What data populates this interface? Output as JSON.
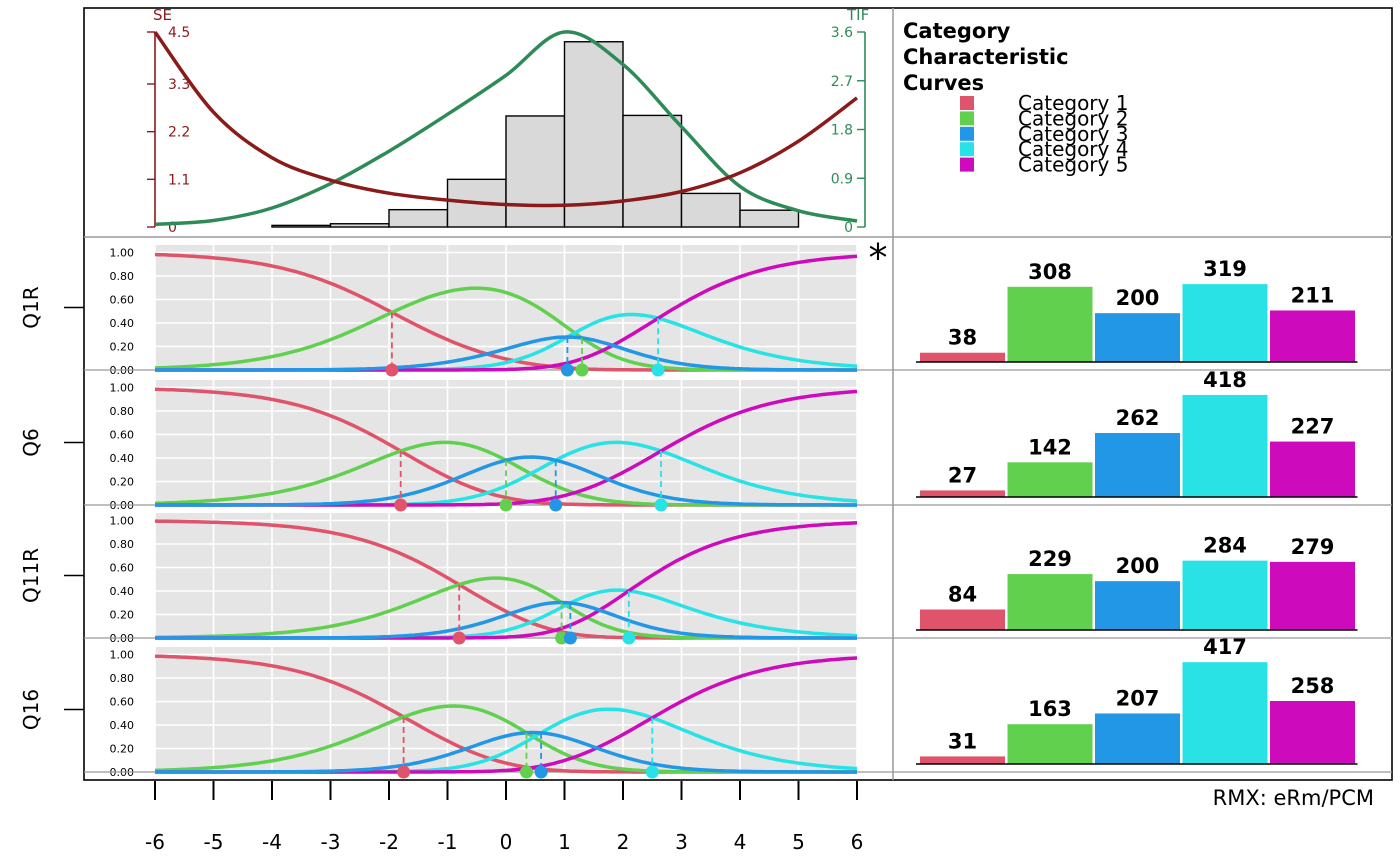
{
  "colors": {
    "cat1": "#DF536B",
    "cat2": "#61D04F",
    "cat3": "#2297E6",
    "cat4": "#28E2E5",
    "cat5": "#CD0BBC",
    "se": "#8B1A1A",
    "tif": "#2E8B57",
    "panel_bg": "#E5E5E5",
    "hist_fill": "#D9D9D9"
  },
  "chart_data": [
    {
      "type": "line",
      "panel": "test information and standard error",
      "left_axis_label": "SE",
      "right_axis_label": "TIF",
      "se_ticks": [
        "0",
        "1.1",
        "2.2",
        "3.3",
        "4.5"
      ],
      "se_range": [
        0,
        4.5
      ],
      "tif_ticks": [
        "0",
        "0.9",
        "1.8",
        "2.7",
        "3.6"
      ],
      "tif_range": [
        0,
        3.6
      ],
      "x_range": [
        -6,
        6
      ],
      "se_curve": {
        "x": [
          -6,
          -5,
          -4,
          -3,
          -2,
          -1,
          0,
          1,
          2,
          3,
          4,
          5,
          6
        ],
        "y": [
          4.5,
          2.65,
          1.6,
          1.08,
          0.78,
          0.62,
          0.52,
          0.5,
          0.6,
          0.82,
          1.25,
          1.98,
          2.98
        ]
      },
      "tif_curve": {
        "x": [
          -6,
          -5,
          -4,
          -3,
          -2,
          -1,
          0,
          1,
          2,
          3,
          4,
          5,
          6
        ],
        "y": [
          0.05,
          0.12,
          0.35,
          0.8,
          1.4,
          2.08,
          2.8,
          3.6,
          3.0,
          1.85,
          0.75,
          0.3,
          0.11
        ]
      },
      "histogram": {
        "bin_edges": [
          -4,
          -3,
          -2,
          -1,
          0,
          1,
          2,
          3,
          4,
          5
        ],
        "heights_tif_units": [
          0.03,
          0.06,
          0.32,
          0.88,
          2.05,
          3.42,
          2.06,
          0.62,
          0.31
        ]
      }
    },
    {
      "type": "line",
      "panel": "category characteristic curves",
      "legend_title": "Category Characteristic Curves",
      "legend": [
        "Category 1",
        "Category 2",
        "Category 3",
        "Category 4",
        "Category 5"
      ],
      "y_ticks": [
        "0.00",
        "0.20",
        "0.40",
        "0.60",
        "0.80",
        "1.00"
      ],
      "y_range": [
        0,
        1
      ],
      "x_ticks": [
        "-6",
        "-5",
        "-4",
        "-3",
        "-2",
        "-1",
        "0",
        "1",
        "2",
        "3",
        "4",
        "5",
        "6"
      ],
      "x_range": [
        -6,
        6
      ],
      "flag_symbol": "*",
      "items": [
        {
          "name": "Q1R",
          "thresholds": [
            -1.95,
            1.3,
            1.05,
            2.6
          ],
          "flagged": true
        },
        {
          "name": "Q6",
          "thresholds": [
            -1.8,
            0,
            0.85,
            2.65
          ],
          "flagged": false
        },
        {
          "name": "Q11R",
          "thresholds": [
            -0.8,
            0.95,
            1.1,
            2.1
          ],
          "flagged": false
        },
        {
          "name": "Q16",
          "thresholds": [
            -1.75,
            0.35,
            0.6,
            2.5
          ],
          "flagged": false
        }
      ]
    },
    {
      "type": "bar",
      "panel": "category frequencies",
      "categories": [
        "Category 1",
        "Category 2",
        "Category 3",
        "Category 4",
        "Category 5"
      ],
      "series": [
        {
          "name": "Q1R",
          "values": [
            38,
            308,
            200,
            319,
            211
          ]
        },
        {
          "name": "Q6",
          "values": [
            27,
            142,
            262,
            418,
            227
          ]
        },
        {
          "name": "Q11R",
          "values": [
            84,
            229,
            200,
            284,
            279
          ]
        },
        {
          "name": "Q16",
          "values": [
            31,
            163,
            207,
            417,
            258
          ]
        }
      ]
    }
  ],
  "footer": {
    "caption": "RMX: eRm/PCM"
  }
}
